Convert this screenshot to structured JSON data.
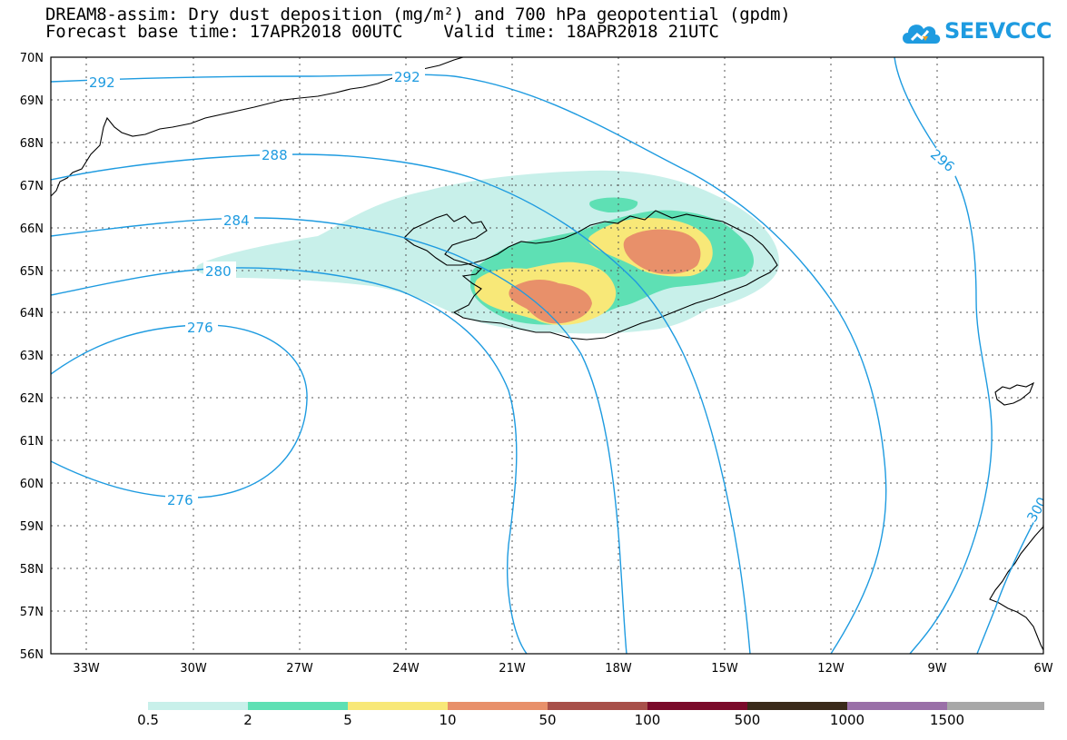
{
  "title_line1": "DREAM8-assim: Dry dust deposition (mg/m²) and 700 hPa geopotential (gpdm)",
  "title_line2": "Forecast base time: 17APR2018 00UTC    Valid time: 18APR2018 21UTC",
  "logo_text": "SEEVCCC",
  "lat_labels": [
    "70N",
    "69N",
    "68N",
    "67N",
    "66N",
    "65N",
    "64N",
    "63N",
    "62N",
    "61N",
    "60N",
    "59N",
    "58N",
    "57N",
    "56N"
  ],
  "lon_labels": [
    "33W",
    "30W",
    "27W",
    "24W",
    "21W",
    "18W",
    "15W",
    "12W",
    "9W",
    "6W"
  ],
  "contour_labels": [
    "292",
    "292",
    "288",
    "284",
    "280",
    "276",
    "276",
    "296",
    "300"
  ],
  "legend": {
    "labels": [
      "0.5",
      "2",
      "5",
      "10",
      "50",
      "100",
      "500",
      "1000",
      "1500"
    ],
    "colors": [
      "#c8f0ea",
      "#5ee0b4",
      "#f8e878",
      "#e8906a",
      "#a8504a",
      "#7a0a2a",
      "#3a2a1a",
      "#9a70a8",
      "#a8a8a8"
    ]
  },
  "colors": {
    "contour": "#1e9be0",
    "coast": "#000000"
  }
}
